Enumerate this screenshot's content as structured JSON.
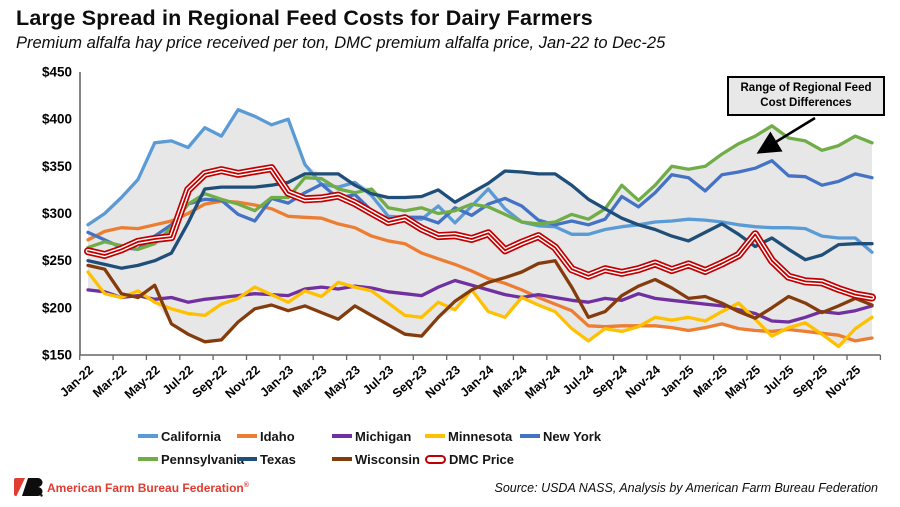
{
  "header": {
    "title": "Large Spread in Regional Feed Costs for Dairy Farmers",
    "subtitle": "Premium alfalfa hay price received per ton, DMC premium alfalfa price, Jan-22 to Dec-25"
  },
  "chart_data": {
    "type": "line",
    "title": "Large Spread in Regional Feed Costs for Dairy Farmers",
    "subtitle": "Premium alfalfa hay price received per ton, DMC premium alfalfa price, Jan-22 to Dec-25",
    "unit": "$ per ton",
    "ylim": [
      150,
      450
    ],
    "ytick_step": 50,
    "ytick_prefix": "$",
    "grid": false,
    "legend_position": "bottom",
    "x_label_every": 2,
    "categories": [
      "Jan-22",
      "Feb-22",
      "Mar-22",
      "Apr-22",
      "May-22",
      "Jun-22",
      "Jul-22",
      "Aug-22",
      "Sep-22",
      "Oct-22",
      "Nov-22",
      "Dec-22",
      "Jan-23",
      "Feb-23",
      "Mar-23",
      "Apr-23",
      "May-23",
      "Jun-23",
      "Jul-23",
      "Aug-23",
      "Sep-23",
      "Oct-23",
      "Nov-23",
      "Dec-23",
      "Jan-24",
      "Feb-24",
      "Mar-24",
      "Apr-24",
      "May-24",
      "Jun-24",
      "Jul-24",
      "Aug-24",
      "Sep-24",
      "Oct-24",
      "Nov-24",
      "Dec-24",
      "Jan-25",
      "Feb-25",
      "Mar-25",
      "Apr-25",
      "May-25",
      "Jun-25",
      "Jul-25",
      "Aug-25",
      "Sep-25",
      "Oct-25",
      "Nov-25",
      "Dec-25"
    ],
    "band": {
      "fill": "#E7E7E7",
      "description": "Shaded area spans min to max of the eight state series each month",
      "label": "Range of Regional Feed Cost Differences"
    },
    "annotation": {
      "text": "Range of Regional Feed Cost Differences"
    },
    "series": [
      {
        "name": "California",
        "color": "#5B9BD5",
        "role": "state",
        "values": [
          288,
          300,
          317,
          336,
          375,
          377,
          370,
          391,
          382,
          410,
          403,
          394,
          400,
          352,
          331,
          328,
          333,
          319,
          297,
          296,
          294,
          308,
          290,
          308,
          326,
          305,
          291,
          287,
          286,
          278,
          278,
          283,
          286,
          288,
          291,
          292,
          294,
          293,
          291,
          288,
          286,
          285,
          285,
          284,
          276,
          274,
          274,
          259
        ]
      },
      {
        "name": "Idaho",
        "color": "#ED7D31",
        "role": "state",
        "values": [
          272,
          281,
          285,
          284,
          288,
          292,
          300,
          310,
          313,
          312,
          309,
          305,
          297,
          296,
          295,
          289,
          285,
          276,
          271,
          268,
          258,
          252,
          246,
          239,
          231,
          226,
          219,
          211,
          204,
          197,
          181,
          180,
          181,
          181,
          181,
          179,
          176,
          179,
          183,
          178,
          176,
          175,
          177,
          175,
          173,
          171,
          165,
          168
        ]
      },
      {
        "name": "Michigan",
        "color": "#7030A0",
        "role": "state",
        "values": [
          219,
          217,
          211,
          213,
          209,
          211,
          206,
          209,
          211,
          213,
          215,
          214,
          213,
          220,
          222,
          220,
          223,
          221,
          217,
          215,
          213,
          222,
          229,
          224,
          219,
          214,
          211,
          214,
          211,
          208,
          206,
          210,
          208,
          215,
          210,
          208,
          206,
          204,
          202,
          198,
          194,
          186,
          185,
          190,
          196,
          194,
          197,
          202
        ]
      },
      {
        "name": "Minnesota",
        "color": "#FFC000",
        "role": "state",
        "values": [
          238,
          215,
          211,
          218,
          206,
          199,
          194,
          192,
          204,
          210,
          222,
          214,
          206,
          218,
          212,
          227,
          222,
          218,
          205,
          192,
          190,
          206,
          198,
          219,
          196,
          190,
          211,
          203,
          196,
          178,
          165,
          178,
          175,
          180,
          190,
          187,
          190,
          186,
          196,
          205,
          188,
          170,
          179,
          184,
          172,
          159,
          178,
          190
        ]
      },
      {
        "name": "New York",
        "color": "#4472C4",
        "role": "state",
        "values": [
          280,
          272,
          264,
          262,
          276,
          288,
          310,
          315,
          314,
          299,
          292,
          316,
          311,
          322,
          331,
          316,
          320,
          303,
          294,
          296,
          296,
          290,
          306,
          298,
          310,
          316,
          308,
          293,
          288,
          292,
          288,
          294,
          318,
          307,
          322,
          341,
          338,
          324,
          341,
          344,
          348,
          356,
          340,
          339,
          330,
          334,
          342,
          338
        ]
      },
      {
        "name": "Pennsylvania",
        "color": "#70AD47",
        "role": "state",
        "values": [
          264,
          270,
          266,
          262,
          268,
          285,
          310,
          321,
          315,
          310,
          303,
          317,
          317,
          338,
          337,
          326,
          322,
          326,
          306,
          303,
          306,
          300,
          303,
          310,
          307,
          299,
          291,
          289,
          291,
          299,
          294,
          305,
          330,
          314,
          330,
          350,
          347,
          350,
          363,
          374,
          382,
          393,
          380,
          377,
          367,
          372,
          382,
          375
        ]
      },
      {
        "name": "Texas",
        "color": "#1F4E79",
        "role": "state",
        "values": [
          250,
          246,
          242,
          245,
          250,
          258,
          290,
          326,
          328,
          328,
          328,
          330,
          333,
          342,
          342,
          342,
          330,
          321,
          317,
          317,
          318,
          325,
          312,
          322,
          332,
          345,
          344,
          342,
          342,
          330,
          315,
          305,
          295,
          288,
          283,
          276,
          271,
          280,
          289,
          278,
          265,
          274,
          262,
          251,
          256,
          267,
          268,
          268
        ]
      },
      {
        "name": "Wisconsin",
        "color": "#843C0C",
        "role": "state",
        "values": [
          245,
          241,
          215,
          211,
          224,
          183,
          172,
          164,
          166,
          185,
          199,
          203,
          197,
          202,
          195,
          188,
          202,
          192,
          182,
          172,
          170,
          190,
          207,
          219,
          227,
          232,
          238,
          247,
          250,
          222,
          190,
          196,
          213,
          223,
          230,
          221,
          210,
          212,
          205,
          196,
          189,
          200,
          212,
          205,
          195,
          202,
          210,
          203
        ]
      },
      {
        "name": "DMC Price",
        "color": "#C00000",
        "role": "dmc",
        "line_style": "double-outline",
        "values": [
          260,
          256,
          262,
          270,
          273,
          275,
          325,
          342,
          346,
          342,
          345,
          348,
          322,
          315,
          316,
          319,
          311,
          301,
          291,
          295,
          284,
          276,
          277,
          273,
          279,
          261,
          269,
          276,
          264,
          241,
          234,
          241,
          237,
          241,
          247,
          240,
          246,
          239,
          247,
          256,
          278,
          250,
          233,
          228,
          227,
          220,
          214,
          211
        ]
      }
    ]
  },
  "footer": {
    "org": "American Farm Bureau Federation",
    "reg_mark": "®",
    "source": "Source: USDA NASS, Analysis by American Farm Bureau Federation"
  }
}
